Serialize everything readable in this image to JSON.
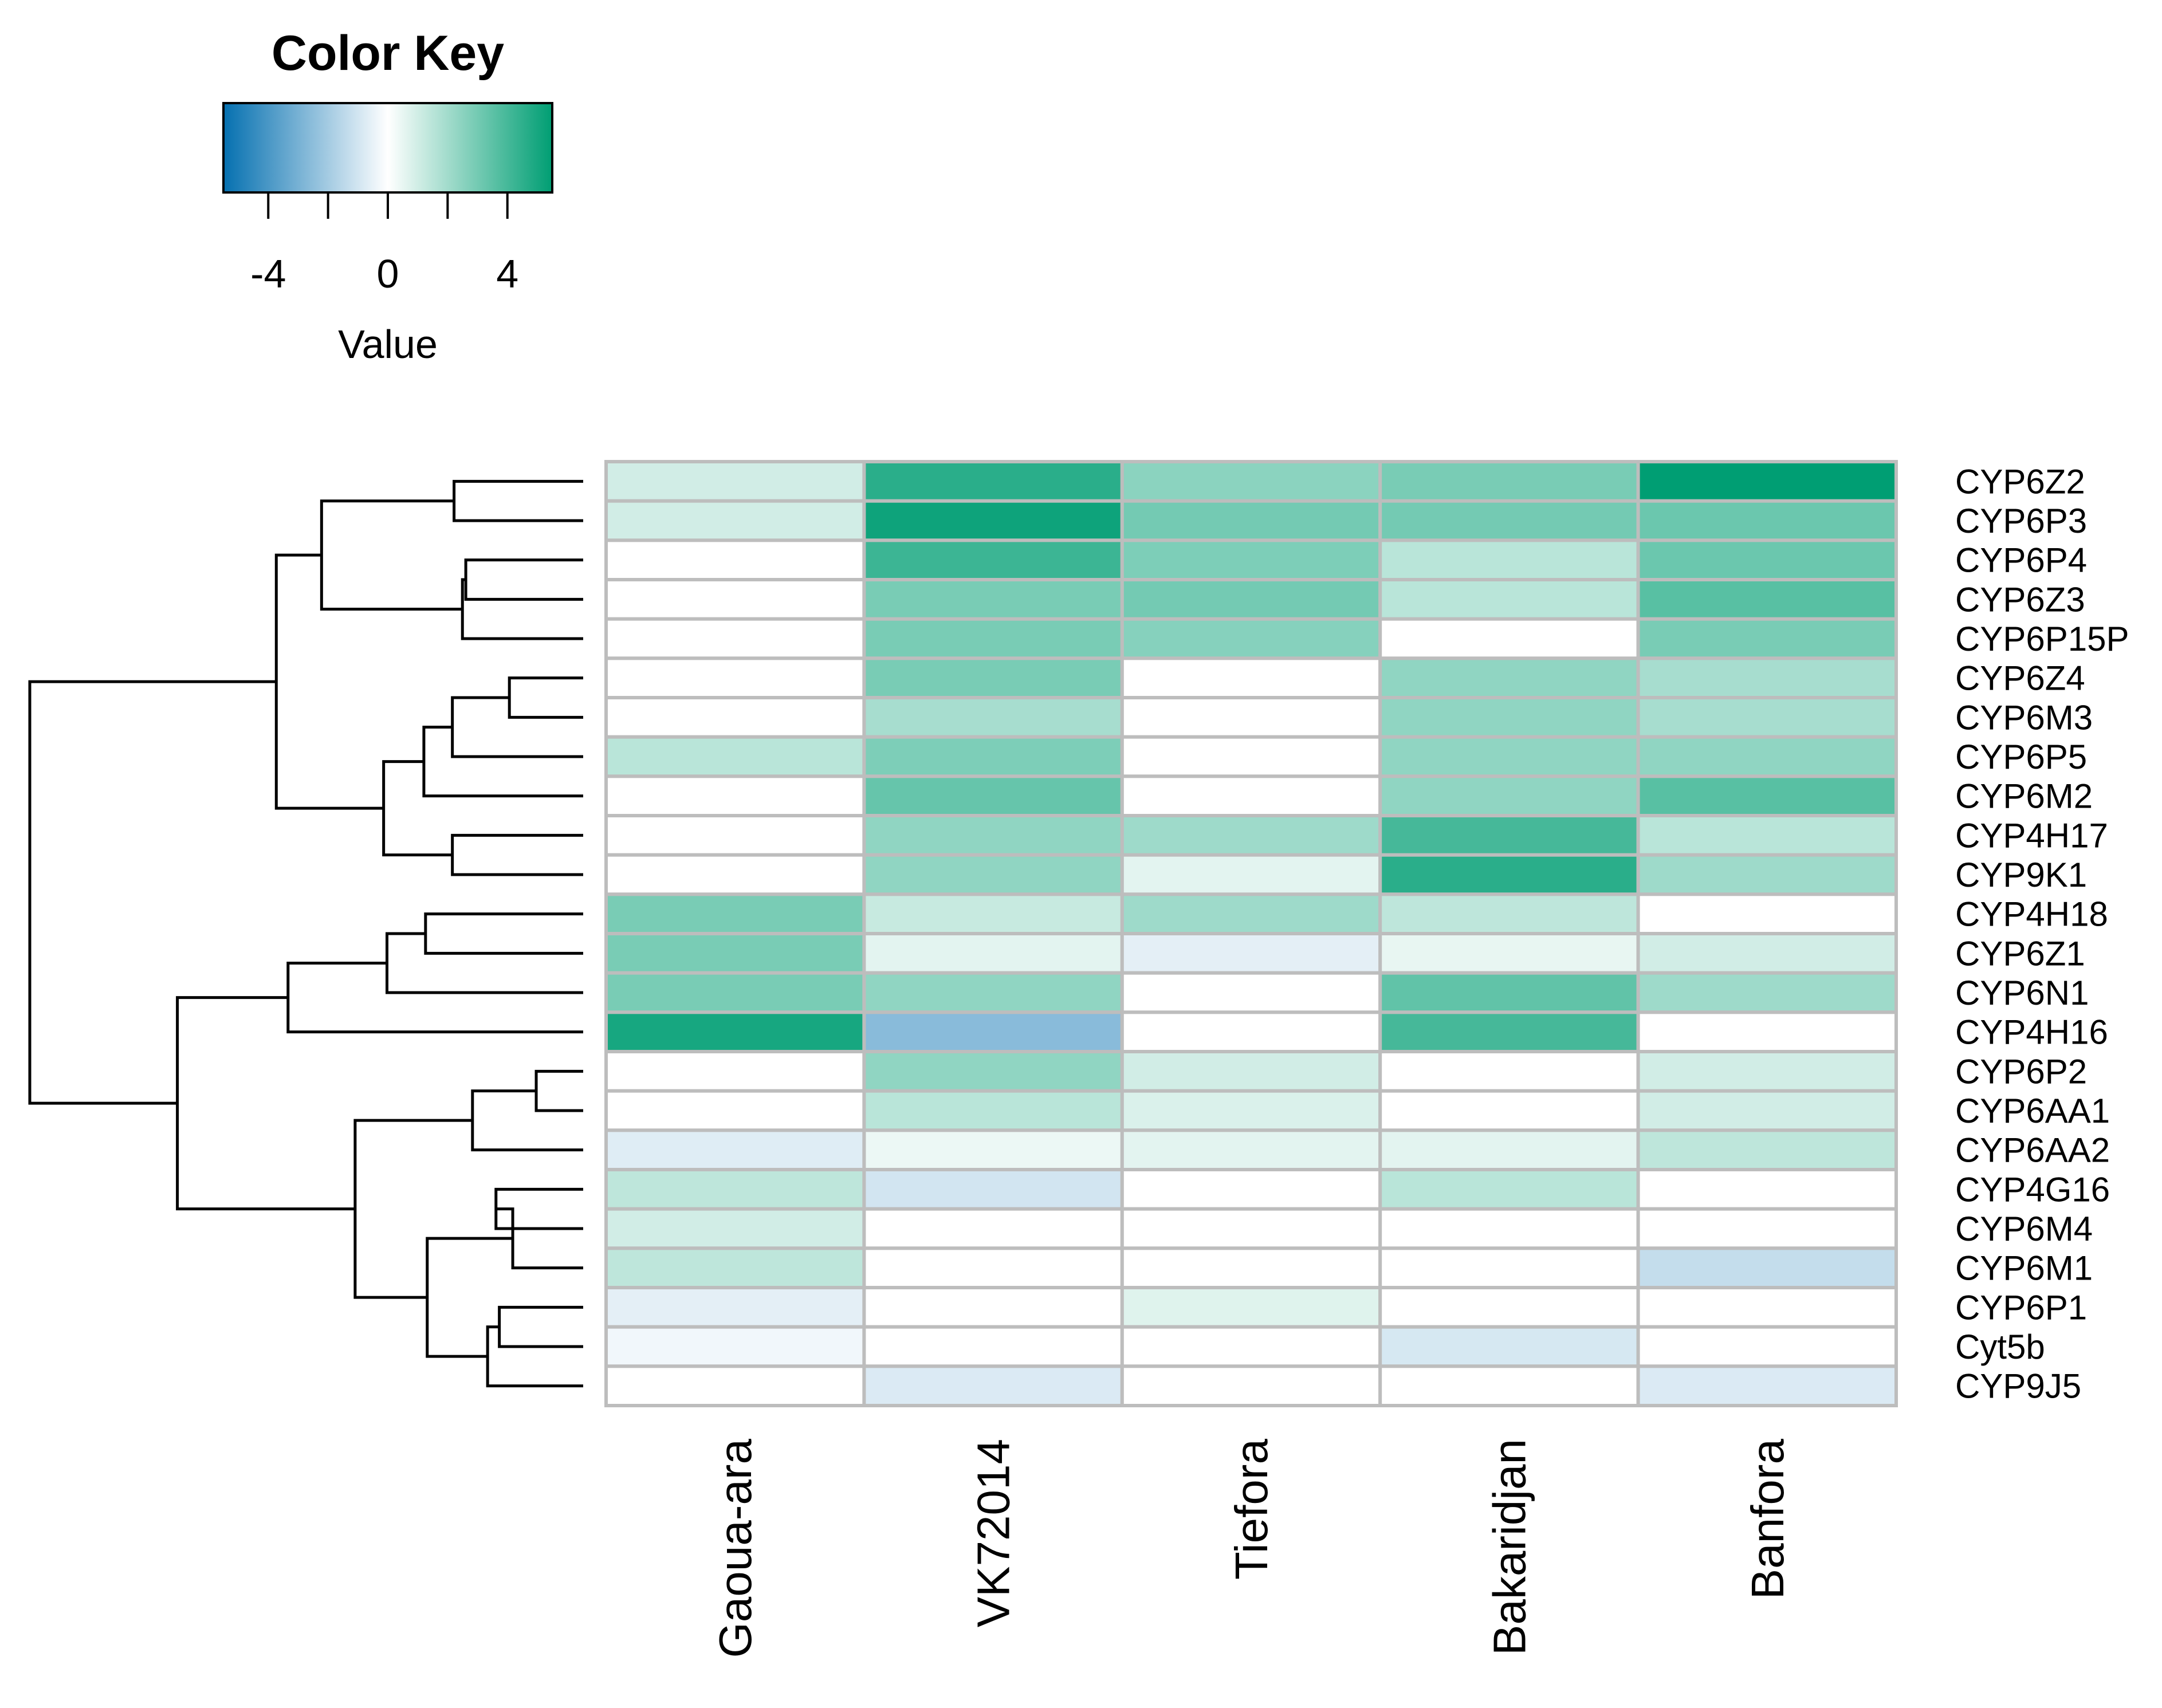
{
  "chart_data": {
    "type": "heatmap",
    "color_key": {
      "title": "Color Key",
      "label": "Value",
      "ticks": [
        -4,
        0,
        4
      ],
      "minor_ticks": [
        -4,
        -2,
        0,
        2,
        4
      ],
      "range": [
        -5.5,
        5.5
      ],
      "low_color": "#0570b0",
      "mid_color": "#ffffff",
      "high_color": "#009e73"
    },
    "columns": [
      "Gaoua-ara",
      "VK72014",
      "Tiefora",
      "Bakaridjan",
      "Banfora"
    ],
    "rows": [
      "CYP6Z2",
      "CYP6P3",
      "CYP6P4",
      "CYP6Z3",
      "CYP6P15P",
      "CYP6Z4",
      "CYP6M3",
      "CYP6P5",
      "CYP6M2",
      "CYP4H17",
      "CYP9K1",
      "CYP4H18",
      "CYP6Z1",
      "CYP6N1",
      "CYP4H16",
      "CYP6P2",
      "CYP6AA1",
      "CYP6AA2",
      "CYP4G16",
      "CYP6M4",
      "CYP6M1",
      "CYP6P1",
      "Cyt5b",
      "CYP9J5"
    ],
    "values": [
      [
        1.0,
        4.6,
        2.5,
        2.9,
        5.5
      ],
      [
        1.0,
        5.2,
        3.0,
        3.0,
        3.2
      ],
      [
        0.0,
        4.2,
        2.8,
        1.5,
        3.2
      ],
      [
        0.0,
        2.9,
        3.0,
        1.5,
        3.6
      ],
      [
        0.0,
        2.9,
        2.6,
        0.0,
        2.9
      ],
      [
        0.0,
        2.9,
        0.0,
        2.4,
        1.9
      ],
      [
        0.0,
        1.9,
        0.0,
        2.4,
        1.9
      ],
      [
        1.5,
        2.8,
        0.0,
        2.4,
        2.4
      ],
      [
        0.0,
        3.3,
        0.0,
        2.4,
        3.6
      ],
      [
        0.0,
        2.4,
        2.1,
        4.0,
        1.5
      ],
      [
        0.0,
        2.4,
        0.6,
        4.6,
        2.1
      ],
      [
        2.9,
        1.2,
        2.1,
        1.4,
        0.0
      ],
      [
        2.9,
        0.6,
        -0.6,
        0.5,
        1.0
      ],
      [
        2.9,
        2.4,
        0.0,
        3.4,
        2.1
      ],
      [
        5.0,
        -2.6,
        0.0,
        4.0,
        0.0
      ],
      [
        0.0,
        2.4,
        1.0,
        0.0,
        1.0
      ],
      [
        0.0,
        1.5,
        0.8,
        0.0,
        1.0
      ],
      [
        -0.7,
        0.4,
        0.6,
        0.6,
        1.4
      ],
      [
        1.4,
        -1.0,
        0.0,
        1.5,
        0.0
      ],
      [
        1.0,
        0.0,
        0.0,
        0.0,
        0.0
      ],
      [
        1.4,
        0.0,
        0.0,
        0.0,
        -1.3
      ],
      [
        -0.6,
        0.0,
        0.7,
        0.0,
        0.0
      ],
      [
        -0.3,
        0.0,
        0.0,
        -0.9,
        0.0
      ],
      [
        0.0,
        -0.8,
        0.0,
        0.0,
        -0.8
      ]
    ],
    "row_dendrogram": {
      "leaf_order": [
        "CYP6Z2",
        "CYP6P3",
        "CYP6P4",
        "CYP6Z3",
        "CYP6P15P",
        "CYP6Z4",
        "CYP6M3",
        "CYP6P5",
        "CYP6M2",
        "CYP4H17",
        "CYP9K1",
        "CYP4H18",
        "CYP6Z1",
        "CYP6N1",
        "CYP4H16",
        "CYP6P2",
        "CYP6AA1",
        "CYP6AA2",
        "CYP4G16",
        "CYP6M4",
        "CYP6M1",
        "CYP6P1",
        "Cyt5b",
        "CYP9J5"
      ],
      "merges": [
        [
          -1,
          -2,
          0.77
        ],
        [
          -3,
          -4,
          0.7
        ],
        [
          2,
          -5,
          0.72
        ],
        [
          1,
          3,
          1.56
        ],
        [
          -6,
          -7,
          0.44
        ],
        [
          5,
          -8,
          0.78
        ],
        [
          6,
          -9,
          0.95
        ],
        [
          -10,
          -11,
          0.78
        ],
        [
          7,
          8,
          1.19
        ],
        [
          4,
          9,
          1.83
        ],
        [
          -12,
          -13,
          0.94
        ],
        [
          11,
          -14,
          1.17
        ],
        [
          12,
          -15,
          1.76
        ],
        [
          -16,
          -17,
          0.28
        ],
        [
          14,
          -18,
          0.66
        ],
        [
          -19,
          -20,
          0.52
        ],
        [
          16,
          -21,
          0.42
        ],
        [
          -22,
          -23,
          0.5
        ],
        [
          18,
          -24,
          0.57
        ],
        [
          17,
          19,
          0.93
        ],
        [
          15,
          20,
          1.36
        ],
        [
          13,
          21,
          2.42
        ],
        [
          10,
          22,
          3.3
        ]
      ],
      "max_height": 3.3
    }
  }
}
